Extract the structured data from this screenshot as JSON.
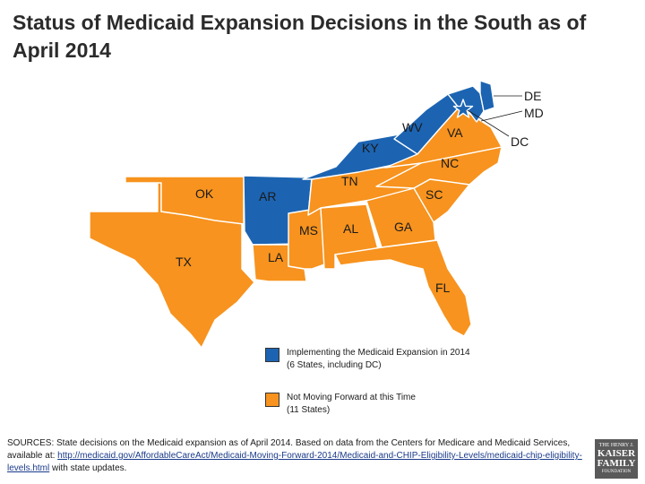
{
  "title": {
    "line1": "Status of Medicaid Expansion Decisions in the South as of",
    "line2": "April 2014"
  },
  "colors": {
    "implementing": "#1c64b2",
    "not_moving": "#f7931e",
    "outline": "#ffffff"
  },
  "map": {
    "states": [
      {
        "abbr": "TX",
        "status": "not_moving"
      },
      {
        "abbr": "OK",
        "status": "not_moving"
      },
      {
        "abbr": "AR",
        "status": "implementing"
      },
      {
        "abbr": "LA",
        "status": "not_moving"
      },
      {
        "abbr": "MS",
        "status": "not_moving"
      },
      {
        "abbr": "AL",
        "status": "not_moving"
      },
      {
        "abbr": "TN",
        "status": "not_moving"
      },
      {
        "abbr": "KY",
        "status": "implementing"
      },
      {
        "abbr": "WV",
        "status": "implementing"
      },
      {
        "abbr": "VA",
        "status": "not_moving"
      },
      {
        "abbr": "NC",
        "status": "not_moving"
      },
      {
        "abbr": "SC",
        "status": "not_moving"
      },
      {
        "abbr": "GA",
        "status": "not_moving"
      },
      {
        "abbr": "FL",
        "status": "not_moving"
      },
      {
        "abbr": "DE",
        "status": "implementing"
      },
      {
        "abbr": "MD",
        "status": "implementing"
      },
      {
        "abbr": "DC",
        "status": "implementing"
      }
    ],
    "labels": {
      "TX": "TX",
      "OK": "OK",
      "AR": "AR",
      "LA": "LA",
      "MS": "MS",
      "AL": "AL",
      "TN": "TN",
      "KY": "KY",
      "WV": "WV",
      "VA": "VA",
      "NC": "NC",
      "SC": "SC",
      "GA": "GA",
      "FL": "FL",
      "DE": "DE",
      "MD": "MD",
      "DC": "DC"
    }
  },
  "legend": {
    "implementing": {
      "label": "Implementing the Medicaid Expansion in 2014",
      "sub": "(6 States, including DC)"
    },
    "not_moving": {
      "label": "Not Moving Forward at this Time",
      "sub": "(11 States)"
    }
  },
  "sources": {
    "prefix": "SOURCES: State decisions on the Medicaid expansion as of April 2014. Based on data from the Centers for Medicare and Medicaid Services, available at: ",
    "link": "http://medicaid.gov/AffordableCareAct/Medicaid-Moving-Forward-2014/Medicaid-and-CHIP-Eligibility-Levels/medicaid-chip-eligibility-levels.html",
    "suffix": " with state updates."
  },
  "logo": {
    "line1": "THE HENRY J.",
    "line2": "KAISER",
    "line3": "FAMILY",
    "line4": "FOUNDATION"
  }
}
